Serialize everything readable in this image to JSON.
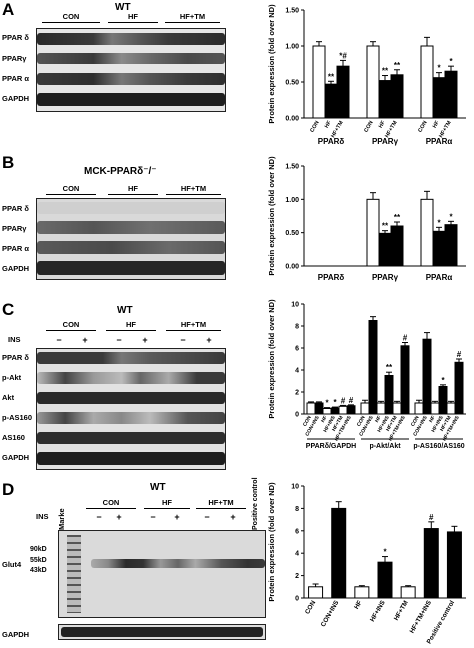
{
  "panels": {
    "A": {
      "letter": "A",
      "title": "WT",
      "groups": [
        "CON",
        "HF",
        "HF+TM"
      ],
      "rows": [
        "PPAR δ",
        "PPARγ",
        "PPAR α",
        "GAPDH"
      ]
    },
    "B": {
      "letter": "B",
      "title": "MCK-PPARδ⁻/⁻",
      "groups": [
        "CON",
        "HF",
        "HF+TM"
      ],
      "rows": [
        "PPAR δ",
        "PPARγ",
        "PPAR α",
        "GAPDH"
      ]
    },
    "C": {
      "letter": "C",
      "title": "WT",
      "ins_label": "INS",
      "pm": [
        "−",
        "+",
        "−",
        "+",
        "−",
        "+"
      ],
      "groups": [
        "CON",
        "HF",
        "HF+TM"
      ],
      "rows": [
        "PPAR δ",
        "p-Akt",
        "Akt",
        "p-AS160",
        "AS160",
        "GAPDH"
      ]
    },
    "D": {
      "letter": "D",
      "title": "WT",
      "marker_label": "Marke",
      "ins_label": "INS",
      "pm": [
        "−",
        "+",
        "−",
        "+",
        "−",
        "+"
      ],
      "groups": [
        "CON",
        "HF",
        "HF+TM"
      ],
      "positive": "Positive control",
      "mw": [
        "90kD",
        "55kD",
        "43kD"
      ],
      "glut": "Glut4",
      "gapdh": "GAPDH"
    }
  },
  "chart_data": [
    {
      "type": "bar",
      "ylabel": "Protein expression (fold over ND)",
      "ylim": [
        0,
        1.5
      ],
      "yticks": [
        "0.00",
        "0.50",
        "1.00",
        "1.50"
      ],
      "groups": [
        "PPARδ",
        "PPARγ",
        "PPARα"
      ],
      "bar_labels": [
        "CON",
        "HF",
        "HF+TM"
      ],
      "series_colors": [
        "#ffffff",
        "#000000",
        "#000000"
      ],
      "values": [
        [
          1.0,
          0.47,
          0.72
        ],
        [
          1.0,
          0.52,
          0.6
        ],
        [
          1.0,
          0.56,
          0.65
        ]
      ],
      "errors": [
        [
          0.06,
          0.04,
          0.08
        ],
        [
          0.06,
          0.07,
          0.07
        ],
        [
          0.12,
          0.07,
          0.07
        ]
      ],
      "marks": [
        [
          "",
          "**",
          "*#"
        ],
        [
          "",
          "**",
          "**"
        ],
        [
          "",
          "*",
          "*"
        ]
      ]
    },
    {
      "type": "bar",
      "ylabel": "Protein expression (fold over ND)",
      "ylim": [
        0,
        1.5
      ],
      "yticks": [
        "0.00",
        "0.50",
        "1.00",
        "1.50"
      ],
      "groups": [
        "PPARδ",
        "PPARγ",
        "PPARα"
      ],
      "values": [
        [
          0,
          0,
          0
        ],
        [
          1.0,
          0.49,
          0.6
        ],
        [
          1.0,
          0.52,
          0.62
        ]
      ],
      "errors": [
        [
          0,
          0,
          0
        ],
        [
          0.1,
          0.04,
          0.06
        ],
        [
          0.12,
          0.06,
          0.05
        ]
      ],
      "marks": [
        [
          "",
          "",
          ""
        ],
        [
          "",
          "**",
          "**"
        ],
        [
          "",
          "*",
          "*"
        ]
      ]
    },
    {
      "type": "bar",
      "ylabel": "Protein expression (fold over ND)",
      "ylim": [
        0,
        10
      ],
      "yticks": [
        "0",
        "2",
        "4",
        "6",
        "8",
        "10"
      ],
      "groups": [
        "PPARδ/GAPDH",
        "p-Akt/Akt",
        "p-AS160/AS160"
      ],
      "bar_labels": [
        "CON",
        "CON+INS",
        "HF",
        "HF+INS",
        "HF+TM",
        "HF+TM+INS"
      ],
      "values": [
        [
          1.0,
          1.0,
          0.5,
          0.55,
          0.7,
          0.75
        ],
        [
          1.0,
          8.5,
          1.0,
          3.5,
          1.0,
          6.2
        ],
        [
          1.0,
          6.8,
          1.0,
          2.5,
          1.0,
          4.7
        ]
      ],
      "errors": [
        [
          0.1,
          0.1,
          0.08,
          0.08,
          0.08,
          0.08
        ],
        [
          0.25,
          0.35,
          0.15,
          0.3,
          0.15,
          0.3
        ],
        [
          0.25,
          0.6,
          0.15,
          0.15,
          0.15,
          0.3
        ]
      ],
      "marks": [
        [
          "",
          "",
          "*",
          "*",
          "#",
          "#"
        ],
        [
          "",
          "",
          "",
          "**",
          "",
          "#"
        ],
        [
          "",
          "",
          "",
          "*",
          "",
          "#"
        ]
      ]
    },
    {
      "type": "bar",
      "ylabel": "Protein expression (fold over ND)",
      "ylim": [
        0,
        10
      ],
      "yticks": [
        "0",
        "2",
        "4",
        "6",
        "8",
        "10"
      ],
      "categories": [
        "CON",
        "CON+INS",
        "HF",
        "HF+INS",
        "HF+TM",
        "HF+TM+INS",
        "Positive control"
      ],
      "values": [
        1.0,
        8.0,
        1.0,
        3.2,
        1.0,
        6.2,
        5.9
      ],
      "errors": [
        0.25,
        0.6,
        0.1,
        0.5,
        0.1,
        0.6,
        0.5
      ],
      "fill": [
        "#ffffff",
        "#000000",
        "#ffffff",
        "#000000",
        "#ffffff",
        "#000000",
        "#000000"
      ],
      "marks": [
        "",
        "",
        "",
        "*",
        "",
        "#",
        ""
      ]
    }
  ]
}
